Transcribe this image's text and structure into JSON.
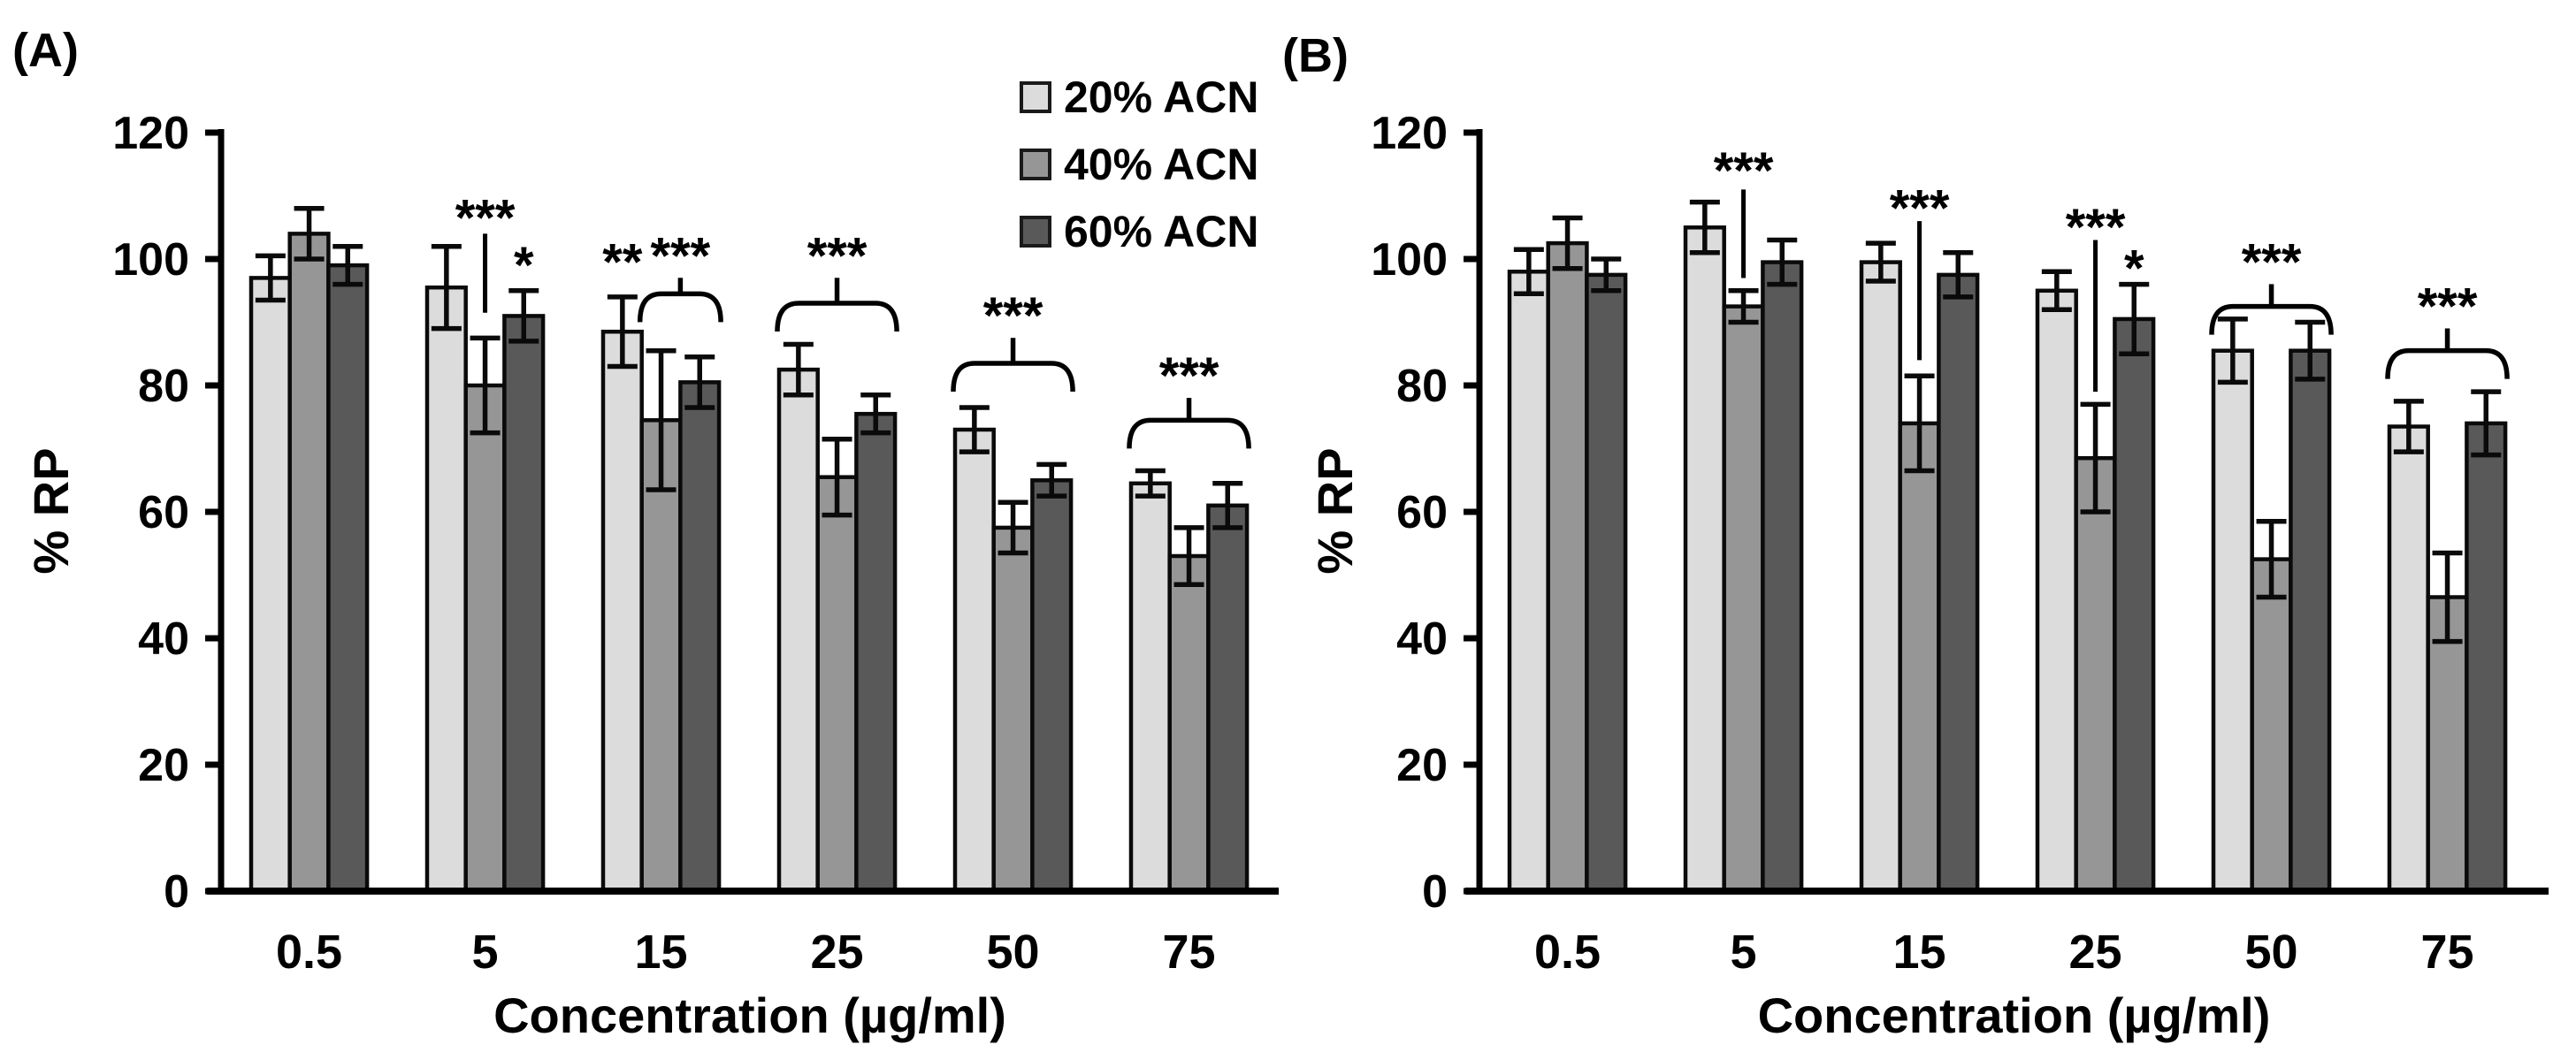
{
  "figure": {
    "background": "#ffffff",
    "panel_count": 2
  },
  "colors": {
    "bar_light": "#dcdcdc",
    "bar_mid": "#969696",
    "bar_dark": "#595959",
    "outline": "#0a0a0a",
    "text": "#000000"
  },
  "chart_data": [
    {
      "panel_label": "(A)",
      "type": "bar",
      "title": "",
      "xlabel": "Concentration (µg/ml)",
      "ylabel": "% RP",
      "ylim": [
        0,
        120
      ],
      "ytick_step": 20,
      "yticks": [
        0,
        20,
        40,
        60,
        80,
        100,
        120
      ],
      "grid": false,
      "categories": [
        "0.5",
        "5",
        "15",
        "25",
        "50",
        "75"
      ],
      "legend": {
        "visible": true,
        "position": "top-right-inside"
      },
      "series": [
        {
          "name": "20% ACN",
          "color": "#dcdcdc",
          "values": [
            97,
            95.5,
            88.5,
            82.5,
            73,
            64.5
          ],
          "errors": [
            3.5,
            6.5,
            5.5,
            4,
            3.5,
            2
          ]
        },
        {
          "name": "40% ACN",
          "color": "#969696",
          "values": [
            104,
            80,
            74.5,
            65.5,
            57.5,
            53
          ],
          "errors": [
            4,
            7.5,
            11,
            6,
            4,
            4.5
          ]
        },
        {
          "name": "60% ACN",
          "color": "#595959",
          "values": [
            99,
            91,
            80.5,
            75.5,
            65,
            61
          ],
          "errors": [
            3,
            4,
            4,
            3,
            2.5,
            3.5
          ]
        }
      ],
      "significance": [
        {
          "kind": "line",
          "stars": "***",
          "group": 1,
          "series": 1,
          "star_v": 107.5,
          "line_top": 104,
          "line_bottom": 91.5
        },
        {
          "kind": "star",
          "stars": "*",
          "group": 1,
          "series": 2,
          "star_v": 100
        },
        {
          "kind": "star",
          "stars": "**",
          "group": 2,
          "series": 0,
          "star_v": 100.5
        },
        {
          "kind": "bracket",
          "stars": "***",
          "group": 2,
          "span": [
            1,
            2
          ],
          "bracket_v": 94.5,
          "star_v": 101.5
        },
        {
          "kind": "bracket",
          "stars": "***",
          "group": 3,
          "span": [
            0,
            2
          ],
          "bracket_v": 93,
          "star_v": 101.5
        },
        {
          "kind": "bracket",
          "stars": "***",
          "group": 4,
          "span": [
            0,
            2
          ],
          "bracket_v": 83.5,
          "star_v": 92
        },
        {
          "kind": "bracket",
          "stars": "***",
          "group": 5,
          "span": [
            0,
            2
          ],
          "bracket_v": 74.5,
          "star_v": 82.5
        }
      ]
    },
    {
      "panel_label": "(B)",
      "type": "bar",
      "title": "",
      "xlabel": "Concentration (µg/ml)",
      "ylabel": "% RP",
      "ylim": [
        0,
        120
      ],
      "ytick_step": 20,
      "yticks": [
        0,
        20,
        40,
        60,
        80,
        100,
        120
      ],
      "grid": false,
      "categories": [
        "0.5",
        "5",
        "15",
        "25",
        "50",
        "75"
      ],
      "legend": {
        "visible": false,
        "position": "none"
      },
      "series": [
        {
          "name": "20% ACN",
          "color": "#dcdcdc",
          "values": [
            98,
            105,
            99.5,
            95,
            85.5,
            73.5
          ],
          "errors": [
            3.5,
            4,
            3,
            3,
            5,
            4
          ]
        },
        {
          "name": "40% ACN",
          "color": "#969696",
          "values": [
            102.5,
            92.5,
            74,
            68.5,
            52.5,
            46.5
          ],
          "errors": [
            4,
            2.5,
            7.5,
            8.5,
            6,
            7
          ]
        },
        {
          "name": "60% ACN",
          "color": "#595959",
          "values": [
            97.5,
            99.5,
            97.5,
            90.5,
            85.5,
            74
          ],
          "errors": [
            2.5,
            3.5,
            3.5,
            5.5,
            4.5,
            5
          ]
        }
      ],
      "significance": [
        {
          "kind": "line",
          "stars": "***",
          "group": 1,
          "series": 1,
          "star_v": 115,
          "line_top": 111,
          "line_bottom": 97
        },
        {
          "kind": "line",
          "stars": "***",
          "group": 2,
          "series": 1,
          "star_v": 109,
          "line_top": 106,
          "line_bottom": 84
        },
        {
          "kind": "line",
          "stars": "***",
          "group": 3,
          "series": 1,
          "star_v": 106,
          "line_top": 103,
          "line_bottom": 79
        },
        {
          "kind": "star",
          "stars": "*",
          "group": 3,
          "series": 2,
          "star_v": 99.5
        },
        {
          "kind": "bracket",
          "stars": "***",
          "group": 4,
          "span": [
            0,
            2
          ],
          "bracket_v": 92.5,
          "star_v": 100.5
        },
        {
          "kind": "bracket",
          "stars": "***",
          "group": 5,
          "span": [
            0,
            2
          ],
          "bracket_v": 85.5,
          "star_v": 93.5
        }
      ]
    }
  ]
}
